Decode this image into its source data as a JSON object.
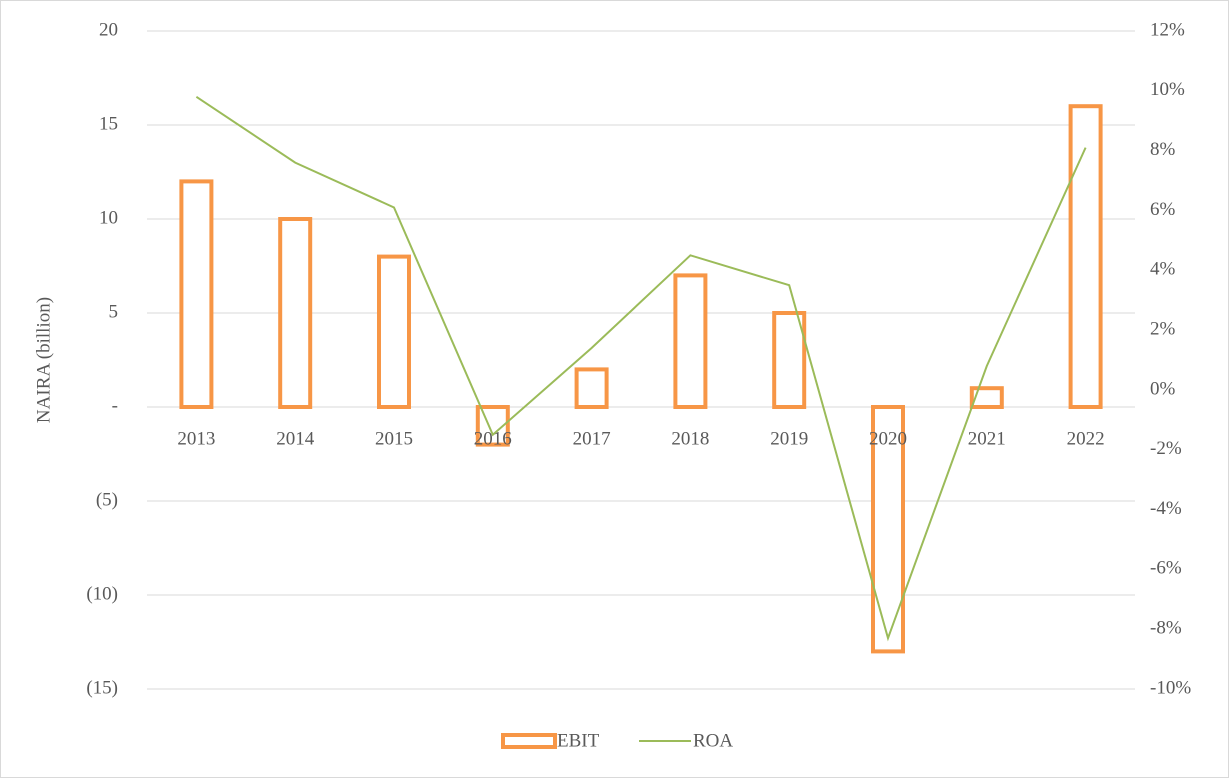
{
  "chart_data": {
    "type": "bar_line",
    "categories": [
      "2013",
      "2014",
      "2015",
      "2016",
      "2017",
      "2018",
      "2019",
      "2020",
      "2021",
      "2022"
    ],
    "y_label": "NAIRA (billion)",
    "series": [
      {
        "name": "EBIT",
        "type": "bar",
        "color": "#f79646",
        "values": [
          12,
          10,
          8,
          -2,
          2,
          7,
          5,
          -13,
          1,
          16
        ]
      },
      {
        "name": "ROA",
        "type": "line",
        "axis": "y2",
        "color": "#9bbb59",
        "values": [
          9.8,
          7.6,
          6.1,
          -1.5,
          1.4,
          4.5,
          3.5,
          -8.3,
          0.8,
          8.1
        ]
      }
    ],
    "ylim": [
      -15,
      20
    ],
    "yticks": [
      20,
      15,
      10,
      5,
      {
        "value": 0,
        "label": "-"
      },
      {
        "value": -5,
        "label": "(5)"
      },
      {
        "value": -10,
        "label": "(10)"
      },
      {
        "value": -15,
        "label": "(15)"
      }
    ],
    "y2lim": [
      -10,
      12
    ],
    "y2ticks": [
      {
        "value": 12,
        "label": "12%"
      },
      {
        "value": 10,
        "label": "10%"
      },
      {
        "value": 8,
        "label": "8%"
      },
      {
        "value": 6,
        "label": "6%"
      },
      {
        "value": 4,
        "label": "4%"
      },
      {
        "value": 2,
        "label": "2%"
      },
      {
        "value": 0,
        "label": "0%"
      },
      {
        "value": -2,
        "label": "-2%"
      },
      {
        "value": -4,
        "label": "-4%"
      },
      {
        "value": -6,
        "label": "-6%"
      },
      {
        "value": -8,
        "label": "-8%"
      },
      {
        "value": -10,
        "label": "-10%"
      }
    ],
    "grid": true,
    "legend": "bottom"
  }
}
